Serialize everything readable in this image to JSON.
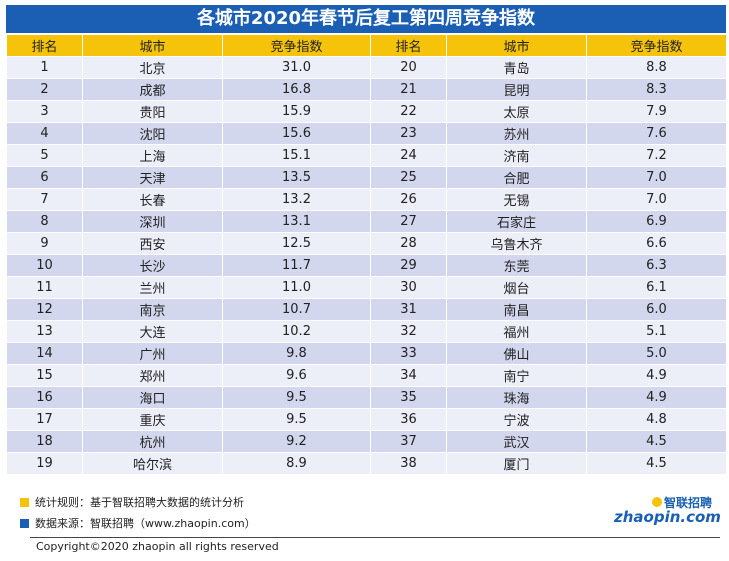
{
  "title": "各城市2020年春节后复工第四周竞争指数",
  "header": [
    "排名",
    "城市",
    "竞争指数",
    "排名",
    "城市",
    "竞争指数"
  ],
  "rows": [
    {
      "rank1": "1",
      "city1": "北京",
      "idx1": "31.0",
      "rank2": "20",
      "city2": "青岛",
      "idx2": "8.8"
    },
    {
      "rank1": "2",
      "city1": "成都",
      "idx1": "16.8",
      "rank2": "21",
      "city2": "昆明",
      "idx2": "8.3"
    },
    {
      "rank1": "3",
      "city1": "贵阳",
      "idx1": "15.9",
      "rank2": "22",
      "city2": "太原",
      "idx2": "7.9"
    },
    {
      "rank1": "4",
      "city1": "沈阳",
      "idx1": "15.6",
      "rank2": "23",
      "city2": "苏州",
      "idx2": "7.6"
    },
    {
      "rank1": "5",
      "city1": "上海",
      "idx1": "15.1",
      "rank2": "24",
      "city2": "济南",
      "idx2": "7.2"
    },
    {
      "rank1": "6",
      "city1": "天津",
      "idx1": "13.5",
      "rank2": "25",
      "city2": "合肥",
      "idx2": "7.0"
    },
    {
      "rank1": "7",
      "city1": "长春",
      "idx1": "13.2",
      "rank2": "26",
      "city2": "无锡",
      "idx2": "7.0"
    },
    {
      "rank1": "8",
      "city1": "深圳",
      "idx1": "13.1",
      "rank2": "27",
      "city2": "石家庄",
      "idx2": "6.9"
    },
    {
      "rank1": "9",
      "city1": "西安",
      "idx1": "12.5",
      "rank2": "28",
      "city2": "乌鲁木齐",
      "idx2": "6.6"
    },
    {
      "rank1": "10",
      "city1": "长沙",
      "idx1": "11.7",
      "rank2": "29",
      "city2": "东莞",
      "idx2": "6.3"
    },
    {
      "rank1": "11",
      "city1": "兰州",
      "idx1": "11.0",
      "rank2": "30",
      "city2": "烟台",
      "idx2": "6.1"
    },
    {
      "rank1": "12",
      "city1": "南京",
      "idx1": "10.7",
      "rank2": "31",
      "city2": "南昌",
      "idx2": "6.0"
    },
    {
      "rank1": "13",
      "city1": "大连",
      "idx1": "10.2",
      "rank2": "32",
      "city2": "福州",
      "idx2": "5.1"
    },
    {
      "rank1": "14",
      "city1": "广州",
      "idx1": "9.8",
      "rank2": "33",
      "city2": "佛山",
      "idx2": "5.0"
    },
    {
      "rank1": "15",
      "city1": "郑州",
      "idx1": "9.6",
      "rank2": "34",
      "city2": "南宁",
      "idx2": "4.9"
    },
    {
      "rank1": "16",
      "city1": "海口",
      "idx1": "9.5",
      "rank2": "35",
      "city2": "珠海",
      "idx2": "4.9"
    },
    {
      "rank1": "17",
      "city1": "重庆",
      "idx1": "9.5",
      "rank2": "36",
      "city2": "宁波",
      "idx2": "4.8"
    },
    {
      "rank1": "18",
      "city1": "杭州",
      "idx1": "9.2",
      "rank2": "37",
      "city2": "武汉",
      "idx2": "4.5"
    },
    {
      "rank1": "19",
      "city1": "哈尔滨",
      "idx1": "8.9",
      "rank2": "38",
      "city2": "厦门",
      "idx2": "4.5"
    }
  ],
  "notes": {
    "rule": "统计规则：基于智联招聘大数据的统计分析",
    "source": "数据来源：智联招聘（www.zhaopin.com）"
  },
  "logo": {
    "text_cn": "智联招聘",
    "text_en": "zhaopin.com"
  },
  "copyright": "Copyright©2020 zhaopin all rights reserved",
  "colors": {
    "title_bg": "#1a5fb4",
    "header_bg": "#f5c40a",
    "row_light": "#eceef8",
    "row_dark": "#d3d7ee",
    "note_yellow": "#f5c40a",
    "note_blue": "#1a5fb4"
  },
  "chart_data": {
    "type": "table",
    "title": "各城市2020年春节后复工第四周竞争指数",
    "columns": [
      "排名",
      "城市",
      "竞争指数"
    ],
    "values": [
      [
        1,
        "北京",
        31.0
      ],
      [
        2,
        "成都",
        16.8
      ],
      [
        3,
        "贵阳",
        15.9
      ],
      [
        4,
        "沈阳",
        15.6
      ],
      [
        5,
        "上海",
        15.1
      ],
      [
        6,
        "天津",
        13.5
      ],
      [
        7,
        "长春",
        13.2
      ],
      [
        8,
        "深圳",
        13.1
      ],
      [
        9,
        "西安",
        12.5
      ],
      [
        10,
        "长沙",
        11.7
      ],
      [
        11,
        "兰州",
        11.0
      ],
      [
        12,
        "南京",
        10.7
      ],
      [
        13,
        "大连",
        10.2
      ],
      [
        14,
        "广州",
        9.8
      ],
      [
        15,
        "郑州",
        9.6
      ],
      [
        16,
        "海口",
        9.5
      ],
      [
        17,
        "重庆",
        9.5
      ],
      [
        18,
        "杭州",
        9.2
      ],
      [
        19,
        "哈尔滨",
        8.9
      ],
      [
        20,
        "青岛",
        8.8
      ],
      [
        21,
        "昆明",
        8.3
      ],
      [
        22,
        "太原",
        7.9
      ],
      [
        23,
        "苏州",
        7.6
      ],
      [
        24,
        "济南",
        7.2
      ],
      [
        25,
        "合肥",
        7.0
      ],
      [
        26,
        "无锡",
        7.0
      ],
      [
        27,
        "石家庄",
        6.9
      ],
      [
        28,
        "乌鲁木齐",
        6.6
      ],
      [
        29,
        "东莞",
        6.3
      ],
      [
        30,
        "烟台",
        6.1
      ],
      [
        31,
        "南昌",
        6.0
      ],
      [
        32,
        "福州",
        5.1
      ],
      [
        33,
        "佛山",
        5.0
      ],
      [
        34,
        "南宁",
        4.9
      ],
      [
        35,
        "珠海",
        4.9
      ],
      [
        36,
        "宁波",
        4.8
      ],
      [
        37,
        "武汉",
        4.5
      ],
      [
        38,
        "厦门",
        4.5
      ]
    ]
  }
}
